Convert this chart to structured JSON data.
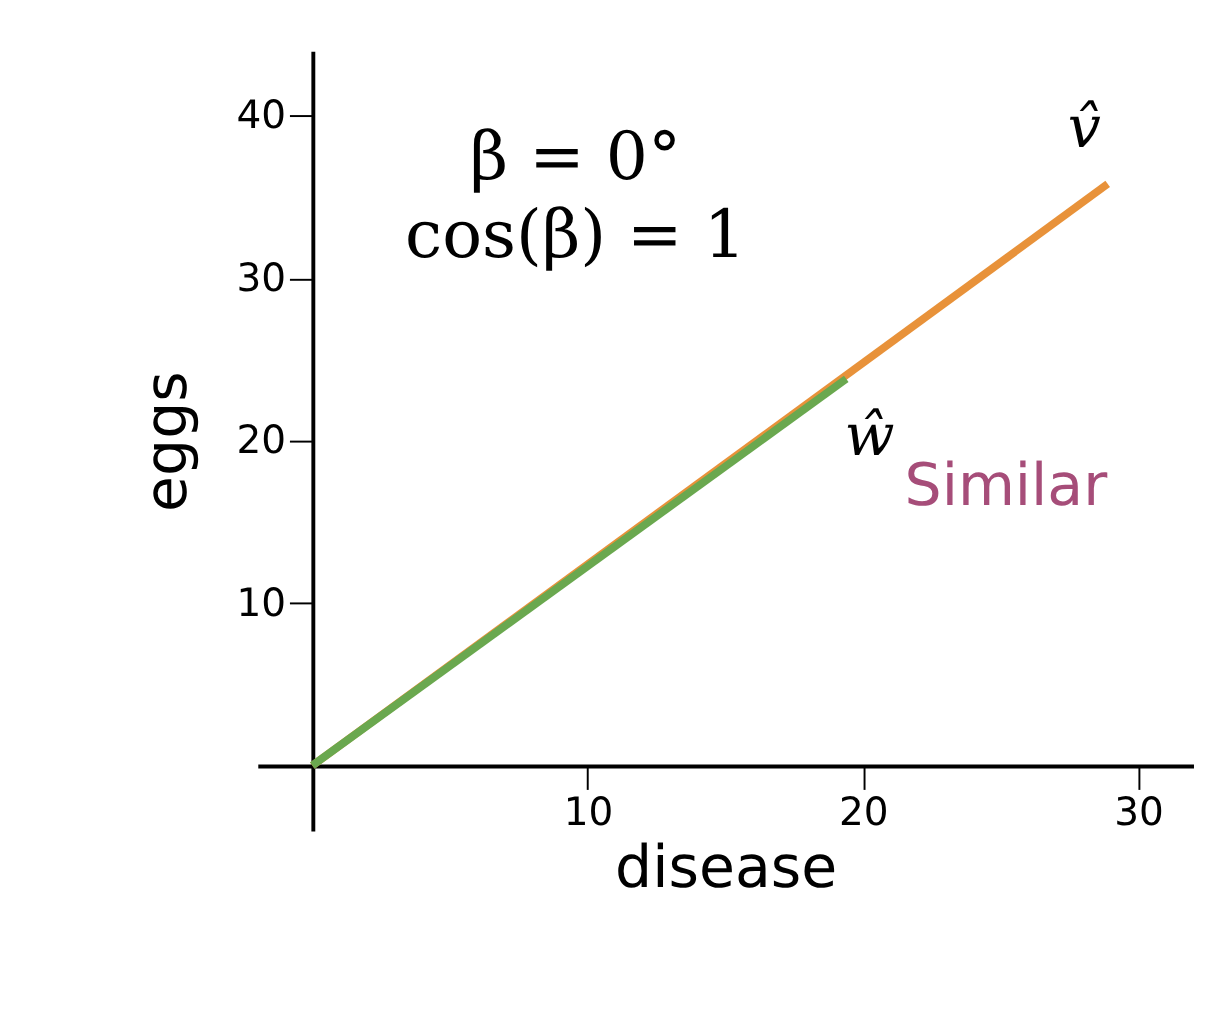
{
  "chart_data": {
    "type": "line",
    "xlabel": "disease",
    "ylabel": "eggs",
    "series": [
      {
        "name": "v̂",
        "color": "#e8923a",
        "x": [
          0,
          28.9
        ],
        "values": [
          0,
          35.8
        ]
      },
      {
        "name": "ŵ",
        "color": "#6aa84f",
        "x": [
          0,
          19.4
        ],
        "values": [
          0,
          23.8
        ]
      }
    ],
    "xlim": [
      -2,
      32
    ],
    "ylim": [
      -4,
      44
    ],
    "xticks": [
      10,
      20,
      30
    ],
    "yticks": [
      10,
      20,
      30,
      40
    ],
    "annotations": [
      "β = 0°",
      "cos(β) = 1",
      "Similar"
    ],
    "grid": false,
    "line_style": "solid"
  }
}
